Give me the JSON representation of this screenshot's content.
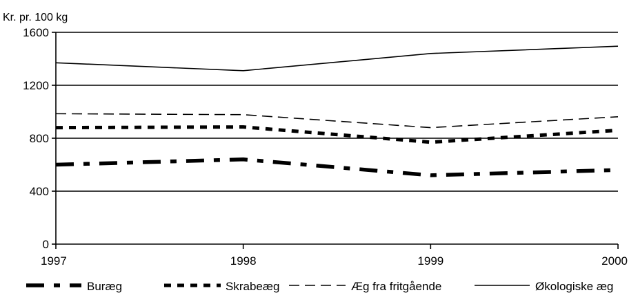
{
  "chart_data": {
    "type": "line",
    "ylabel": "Kr. pr. 100 kg",
    "xlabel": "",
    "title": "",
    "x": [
      "1997",
      "1998",
      "1999",
      "2000"
    ],
    "ylim": [
      0,
      1600
    ],
    "yticks": [
      "0",
      "400",
      "800",
      "1200",
      "1600"
    ],
    "grid": "horizontal",
    "legend_position": "bottom",
    "series": [
      {
        "name": "Buræg",
        "values": [
          600,
          640,
          520,
          560
        ],
        "style": "dash-dot-heavy",
        "color": "#000000"
      },
      {
        "name": "Skrabeæg",
        "values": [
          880,
          885,
          770,
          860
        ],
        "style": "dotted-heavy",
        "color": "#000000"
      },
      {
        "name": "Æg fra fritgående",
        "values": [
          985,
          978,
          880,
          962
        ],
        "style": "dashed",
        "color": "#000000"
      },
      {
        "name": "Økologiske æg",
        "values": [
          1370,
          1310,
          1440,
          1495
        ],
        "style": "solid",
        "color": "#000000"
      }
    ]
  }
}
